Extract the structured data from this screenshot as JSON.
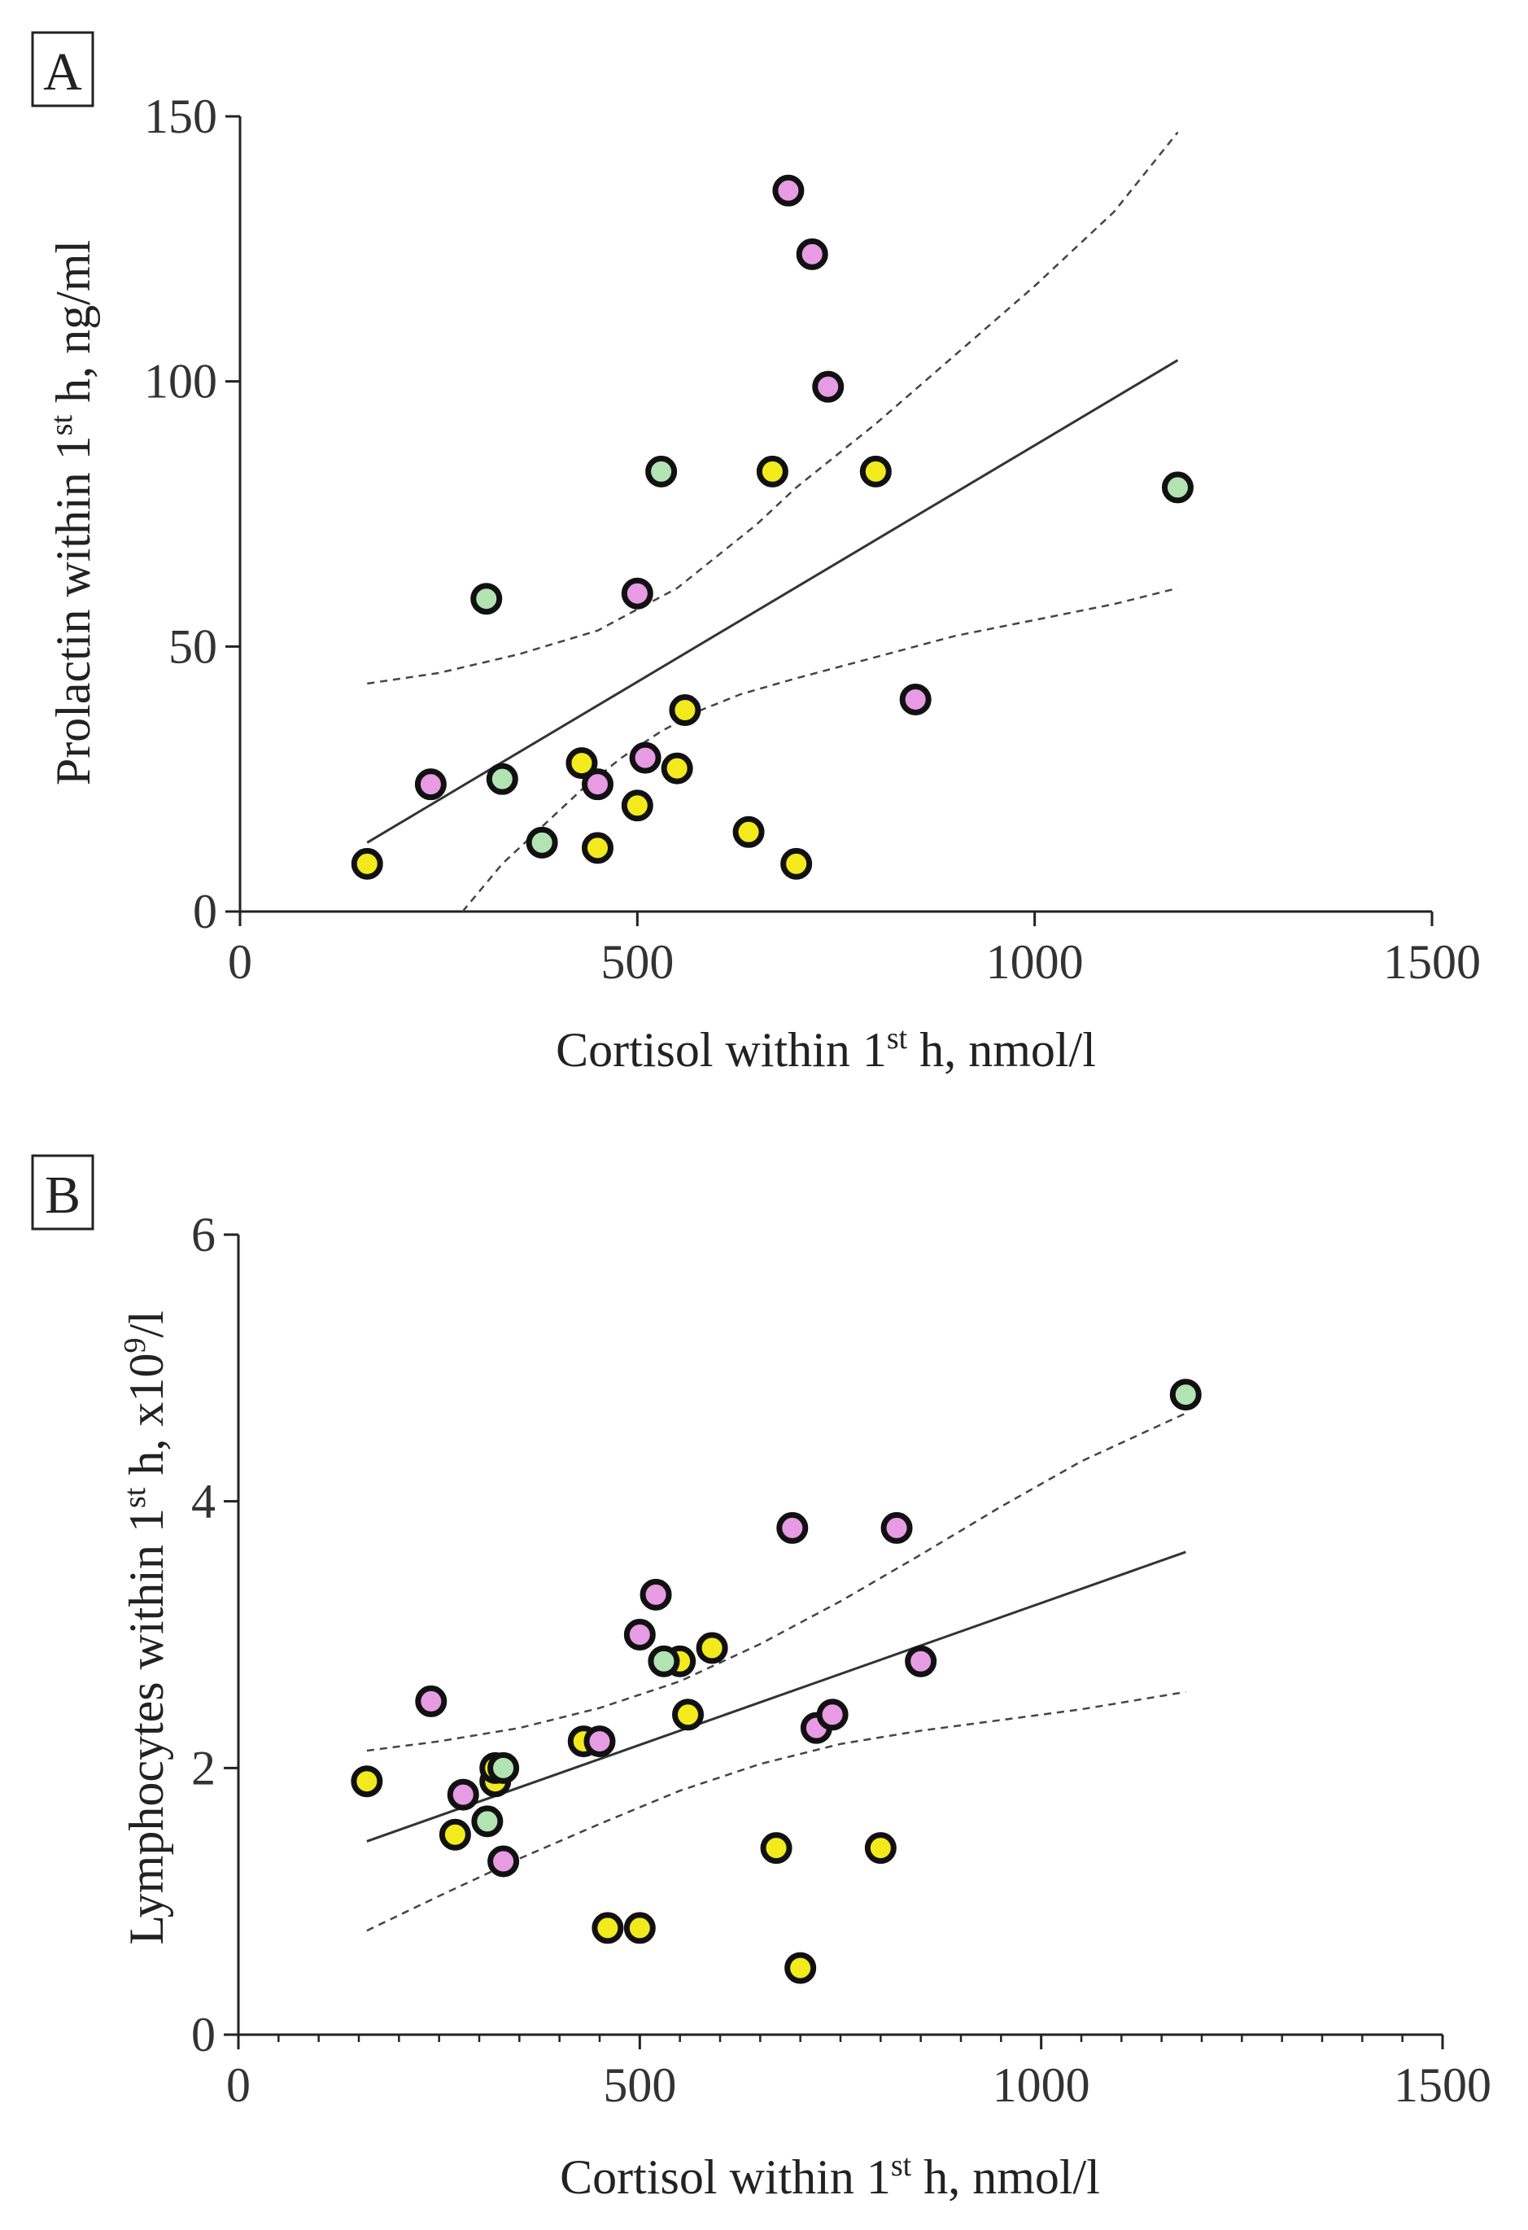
{
  "colors": {
    "yellow": "#f2ea1c",
    "pink": "#e79be3",
    "green": "#b2e3b2"
  },
  "chart_data": [
    {
      "type": "scatter",
      "panel": "A",
      "xlabel": {
        "pre": "Cortisol within 1",
        "sup": "st",
        "post": " h, nmol/l"
      },
      "ylabel": {
        "pre": "Prolactin within 1",
        "sup": "st",
        "post": " h, ng/ml"
      },
      "xlim": [
        0,
        1500
      ],
      "ylim": [
        0,
        150
      ],
      "xticks": [
        0,
        500,
        1000,
        1500
      ],
      "yticks": [
        0,
        50,
        100,
        150
      ],
      "xtick_labels": [
        "0",
        "500",
        "1000",
        "1500"
      ],
      "ytick_labels": [
        "0",
        "50",
        "100",
        "150"
      ],
      "regression": {
        "x": [
          160,
          1180
        ],
        "y": [
          13,
          104
        ]
      },
      "ci_lower": {
        "x": [
          280,
          330,
          380,
          430,
          480,
          530,
          580,
          630,
          700,
          800,
          900,
          1000,
          1100,
          1180
        ],
        "y": [
          0,
          9,
          16,
          23,
          29,
          34,
          38,
          41,
          44,
          48,
          52,
          55,
          58,
          61
        ]
      },
      "ci_upper": {
        "x": [
          160,
          250,
          350,
          450,
          500,
          550,
          600,
          650,
          700,
          800,
          900,
          1000,
          1100,
          1180
        ],
        "y": [
          43,
          45,
          48.5,
          53,
          57,
          61,
          67,
          73,
          80,
          92,
          105,
          118,
          132,
          147
        ]
      },
      "series": [
        {
          "name": "yellow",
          "color": "yellow",
          "x": [
            160,
            430,
            450,
            500,
            550,
            560,
            640,
            670,
            700,
            800
          ],
          "y": [
            9,
            28,
            12,
            20,
            27,
            38,
            15,
            83,
            9,
            83
          ]
        },
        {
          "name": "pink",
          "color": "pink",
          "x": [
            240,
            450,
            500,
            510,
            690,
            720,
            740,
            850
          ],
          "y": [
            24,
            24,
            60,
            29,
            136,
            124,
            99,
            40
          ]
        },
        {
          "name": "green",
          "color": "green",
          "x": [
            310,
            330,
            380,
            530,
            1180
          ],
          "y": [
            59,
            25,
            13,
            83,
            80
          ]
        }
      ]
    },
    {
      "type": "scatter",
      "panel": "B",
      "xlabel": {
        "pre": "Cortisol within 1",
        "sup": "st",
        "post": " h, nmol/l"
      },
      "ylabel": {
        "pre": "Lymphocytes within 1",
        "sup": "st",
        "post": " h, x10",
        "sup2": "9",
        "post2": "/l"
      },
      "xlim": [
        0,
        1500
      ],
      "ylim": [
        0,
        6
      ],
      "xticks": [
        0,
        500,
        1000,
        1500
      ],
      "yticks": [
        0,
        2,
        4,
        6
      ],
      "xtick_labels": [
        "0",
        "500",
        "1000",
        "1500"
      ],
      "ytick_labels": [
        "0",
        "2",
        "4",
        "6"
      ],
      "regression": {
        "x": [
          160,
          1180
        ],
        "y": [
          1.45,
          3.62
        ]
      },
      "ci_lower": {
        "x": [
          160,
          250,
          350,
          450,
          550,
          650,
          750,
          850,
          950,
          1050,
          1180
        ],
        "y": [
          0.78,
          1.04,
          1.32,
          1.58,
          1.83,
          2.03,
          2.18,
          2.28,
          2.36,
          2.44,
          2.57
        ]
      },
      "ci_upper": {
        "x": [
          160,
          250,
          350,
          450,
          550,
          650,
          750,
          850,
          950,
          1050,
          1180
        ],
        "y": [
          2.13,
          2.2,
          2.3,
          2.45,
          2.65,
          2.93,
          3.25,
          3.6,
          3.96,
          4.3,
          4.66
        ]
      },
      "series": [
        {
          "name": "yellow",
          "color": "yellow",
          "x": [
            160,
            270,
            320,
            320,
            430,
            460,
            500,
            550,
            560,
            590,
            670,
            700,
            800
          ],
          "y": [
            1.9,
            1.5,
            1.9,
            2.0,
            2.2,
            0.8,
            0.8,
            2.8,
            2.4,
            2.9,
            1.4,
            0.5,
            1.4
          ]
        },
        {
          "name": "pink",
          "color": "pink",
          "x": [
            240,
            280,
            330,
            450,
            500,
            520,
            690,
            720,
            740,
            820,
            850
          ],
          "y": [
            2.5,
            1.8,
            1.3,
            2.2,
            3.0,
            3.3,
            3.8,
            2.3,
            2.4,
            3.8,
            2.8
          ]
        },
        {
          "name": "green",
          "color": "green",
          "x": [
            310,
            330,
            530,
            1180
          ],
          "y": [
            1.6,
            2.0,
            2.8,
            4.8
          ]
        }
      ]
    }
  ]
}
